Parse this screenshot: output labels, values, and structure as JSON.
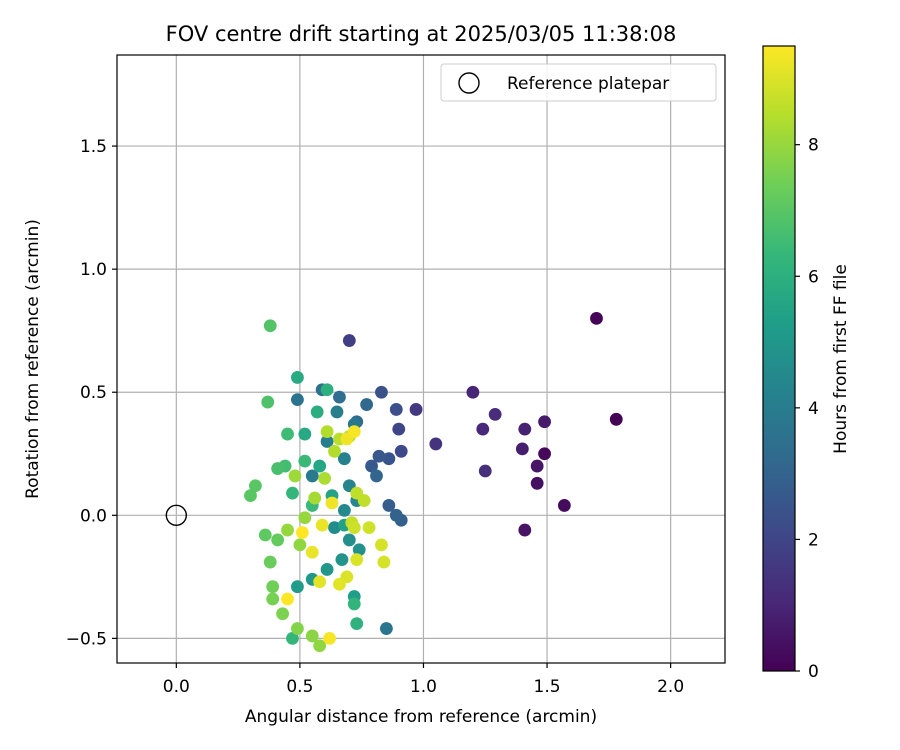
{
  "chart_data": {
    "type": "scatter",
    "title": "FOV centre drift starting at 2025/03/05 11:38:08",
    "xlabel": "Angular distance from reference (arcmin)",
    "ylabel": "Rotation from reference (arcmin)",
    "xlim": [
      -0.24,
      2.22
    ],
    "ylim": [
      -0.6,
      1.87
    ],
    "xticks": [
      0.0,
      0.5,
      1.0,
      1.5,
      2.0
    ],
    "xtick_labels": [
      "0.0",
      "0.5",
      "1.0",
      "1.5",
      "2.0"
    ],
    "yticks": [
      -0.5,
      0.0,
      0.5,
      1.0,
      1.5
    ],
    "ytick_labels": [
      "−0.5",
      "0.0",
      "0.5",
      "1.0",
      "1.5"
    ],
    "grid": true,
    "legend": {
      "position": "top-right",
      "entries": [
        "Reference platepar"
      ]
    },
    "reference_point": {
      "x": 0.0,
      "y": 0.0,
      "marker": "hollow circle"
    },
    "colorbar": {
      "label": "Hours from first FF file",
      "range": [
        0,
        9.5
      ],
      "ticks": [
        0,
        2,
        4,
        6,
        8
      ],
      "tick_labels": [
        "0",
        "2",
        "4",
        "6",
        "8"
      ],
      "colormap": "viridis",
      "stops": [
        "#440154",
        "#482878",
        "#3e4989",
        "#31688e",
        "#26828e",
        "#1f9e89",
        "#35b779",
        "#6ece58",
        "#b5de2b",
        "#fde725"
      ]
    },
    "series": [
      {
        "columns": [
          "x",
          "y",
          "hours"
        ],
        "points": [
          [
            1.7,
            0.8,
            0.05
          ],
          [
            1.78,
            0.39,
            0.1
          ],
          [
            1.49,
            0.25,
            0.2
          ],
          [
            1.57,
            0.04,
            0.3
          ],
          [
            1.46,
            0.13,
            0.4
          ],
          [
            1.41,
            -0.06,
            0.5
          ],
          [
            1.46,
            0.2,
            0.6
          ],
          [
            1.49,
            0.38,
            0.7
          ],
          [
            1.4,
            0.27,
            0.8
          ],
          [
            1.41,
            0.35,
            0.9
          ],
          [
            1.2,
            0.5,
            1.0
          ],
          [
            1.24,
            0.35,
            1.1
          ],
          [
            1.29,
            0.41,
            1.2
          ],
          [
            1.25,
            0.18,
            1.3
          ],
          [
            1.05,
            0.29,
            1.4
          ],
          [
            0.97,
            0.43,
            1.6
          ],
          [
            0.7,
            0.71,
            1.8
          ],
          [
            0.9,
            0.35,
            2.0
          ],
          [
            0.91,
            0.26,
            2.1
          ],
          [
            0.89,
            0.43,
            2.3
          ],
          [
            0.83,
            0.5,
            2.4
          ],
          [
            0.86,
            0.23,
            2.5
          ],
          [
            0.82,
            0.24,
            2.6
          ],
          [
            0.79,
            0.2,
            2.7
          ],
          [
            0.86,
            0.04,
            2.8
          ],
          [
            0.91,
            -0.02,
            2.9
          ],
          [
            0.89,
            0.0,
            3.0
          ],
          [
            0.81,
            0.16,
            3.1
          ],
          [
            0.77,
            0.45,
            3.2
          ],
          [
            0.73,
            0.38,
            3.3
          ],
          [
            0.66,
            0.48,
            3.4
          ],
          [
            0.59,
            0.51,
            3.5
          ],
          [
            0.49,
            0.47,
            3.6
          ],
          [
            0.85,
            -0.46,
            3.7
          ],
          [
            0.72,
            0.37,
            3.8
          ],
          [
            0.55,
            0.16,
            3.9
          ],
          [
            0.61,
            0.3,
            4.0
          ],
          [
            0.65,
            0.42,
            4.1
          ],
          [
            0.68,
            0.23,
            4.2
          ],
          [
            0.7,
            0.12,
            4.3
          ],
          [
            0.73,
            0.06,
            4.4
          ],
          [
            0.68,
            0.02,
            4.5
          ],
          [
            0.64,
            -0.05,
            4.6
          ],
          [
            0.7,
            -0.1,
            4.7
          ],
          [
            0.74,
            -0.14,
            4.8
          ],
          [
            0.67,
            -0.18,
            4.9
          ],
          [
            0.61,
            -0.22,
            5.0
          ],
          [
            0.55,
            -0.26,
            5.1
          ],
          [
            0.49,
            -0.29,
            5.2
          ],
          [
            0.72,
            -0.33,
            5.3
          ],
          [
            0.68,
            -0.04,
            5.4
          ],
          [
            0.63,
            0.08,
            5.5
          ],
          [
            0.58,
            0.2,
            5.6
          ],
          [
            0.52,
            0.33,
            5.7
          ],
          [
            0.49,
            0.56,
            5.8
          ],
          [
            0.57,
            0.42,
            5.9
          ],
          [
            0.61,
            0.51,
            6.0
          ],
          [
            0.73,
            -0.44,
            6.1
          ],
          [
            0.72,
            -0.36,
            6.2
          ],
          [
            0.47,
            -0.5,
            6.3
          ],
          [
            0.47,
            0.09,
            6.3
          ],
          [
            0.55,
            0.04,
            6.4
          ],
          [
            0.52,
            0.22,
            6.4
          ],
          [
            0.45,
            0.33,
            6.5
          ],
          [
            0.44,
            0.2,
            6.6
          ],
          [
            0.41,
            0.19,
            6.7
          ],
          [
            0.37,
            0.46,
            6.8
          ],
          [
            0.38,
            0.77,
            6.9
          ],
          [
            0.32,
            0.12,
            7.0
          ],
          [
            0.3,
            0.08,
            7.0
          ],
          [
            0.36,
            -0.08,
            7.1
          ],
          [
            0.41,
            -0.1,
            7.2
          ],
          [
            0.38,
            -0.19,
            7.3
          ],
          [
            0.39,
            -0.29,
            7.4
          ],
          [
            0.39,
            -0.34,
            7.5
          ],
          [
            0.43,
            -0.4,
            7.6
          ],
          [
            0.49,
            -0.46,
            7.7
          ],
          [
            0.55,
            -0.49,
            7.8
          ],
          [
            0.58,
            -0.53,
            7.9
          ],
          [
            0.5,
            -0.12,
            7.9
          ],
          [
            0.45,
            -0.06,
            8.0
          ],
          [
            0.52,
            -0.01,
            8.0
          ],
          [
            0.48,
            0.16,
            8.1
          ],
          [
            0.56,
            0.07,
            8.2
          ],
          [
            0.6,
            0.15,
            8.3
          ],
          [
            0.64,
            0.26,
            8.4
          ],
          [
            0.61,
            0.34,
            8.4
          ],
          [
            0.66,
            0.31,
            8.5
          ],
          [
            0.7,
            0.32,
            8.5
          ],
          [
            0.73,
            0.09,
            8.6
          ],
          [
            0.76,
            0.06,
            8.6
          ],
          [
            0.71,
            -0.03,
            8.7
          ],
          [
            0.72,
            -0.05,
            8.8
          ],
          [
            0.78,
            -0.05,
            8.8
          ],
          [
            0.83,
            -0.12,
            8.9
          ],
          [
            0.84,
            -0.19,
            8.9
          ],
          [
            0.73,
            -0.18,
            9.0
          ],
          [
            0.69,
            -0.25,
            9.0
          ],
          [
            0.66,
            -0.28,
            9.1
          ],
          [
            0.58,
            -0.27,
            9.1
          ],
          [
            0.55,
            -0.15,
            9.2
          ],
          [
            0.59,
            -0.04,
            9.2
          ],
          [
            0.63,
            0.05,
            9.3
          ],
          [
            0.69,
            0.31,
            9.3
          ],
          [
            0.72,
            0.34,
            9.4
          ],
          [
            0.62,
            -0.5,
            9.4
          ],
          [
            0.45,
            -0.34,
            9.5
          ],
          [
            0.51,
            -0.07,
            9.5
          ]
        ]
      }
    ]
  }
}
